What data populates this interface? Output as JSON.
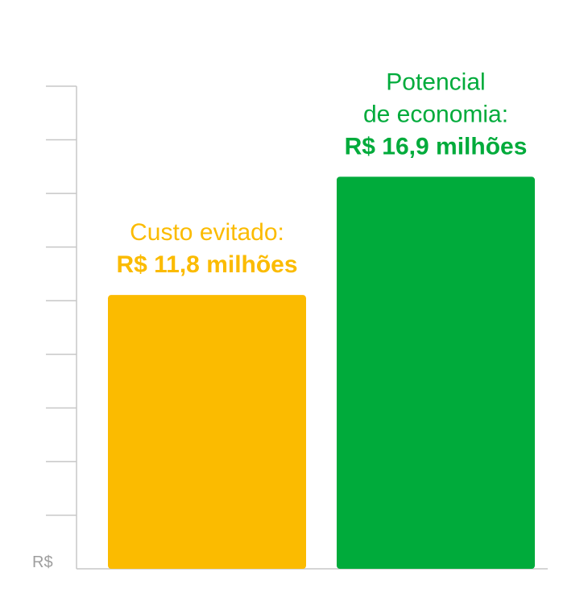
{
  "chart_data": {
    "type": "bar",
    "categories": [
      "Custo evitado",
      "Potencial de economia"
    ],
    "values": [
      11.8,
      16.9
    ],
    "ylim": [
      0,
      20.8
    ],
    "y_unit_label": "R$",
    "grid": false,
    "bars": [
      {
        "label_lines": [
          "Custo evitado:"
        ],
        "value_label": "R$ 11,8 milhões",
        "color": "#fbbb00"
      },
      {
        "label_lines": [
          "Potencial",
          "de economia:"
        ],
        "value_label": "R$ 16,9 milhões",
        "color": "#00ab3b"
      }
    ]
  },
  "colors": {
    "axis": "#c7c7c7",
    "unit_text": "#9e9e9e"
  }
}
